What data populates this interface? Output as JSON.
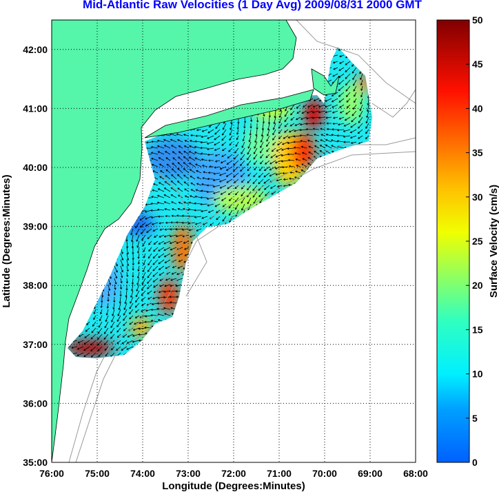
{
  "title": "Mid-Atlantic Raw Velocities (1 Day Avg) 2009/08/31 2000 GMT",
  "chart_data": {
    "type": "heatmap",
    "title": "Mid-Atlantic Raw Velocities (1 Day Avg) 2009/08/31 2000 GMT",
    "xlabel": "Longitude (Degrees:Minutes)",
    "ylabel": "Latitude (Degrees:Minutes)",
    "xlim": [
      -76,
      -68
    ],
    "ylim": [
      35,
      42.5
    ],
    "x_ticks": [
      "76:00",
      "75:00",
      "74:00",
      "73:00",
      "72:00",
      "71:00",
      "70:00",
      "69:00",
      "68:00"
    ],
    "y_ticks": [
      "35:00",
      "36:00",
      "37:00",
      "38:00",
      "39:00",
      "40:00",
      "41:00",
      "42:00"
    ],
    "grid": true,
    "colorbar": {
      "label": "Surface Velocity (cm/s)",
      "range": [
        0,
        50
      ],
      "ticks": [
        "0",
        "5",
        "10",
        "15",
        "20",
        "25",
        "30",
        "35",
        "40",
        "45",
        "50"
      ]
    }
  },
  "colors": {
    "land": "#55f5aa",
    "title": "#0000ff",
    "grid": "#000000",
    "bathymetry": "#999999"
  }
}
